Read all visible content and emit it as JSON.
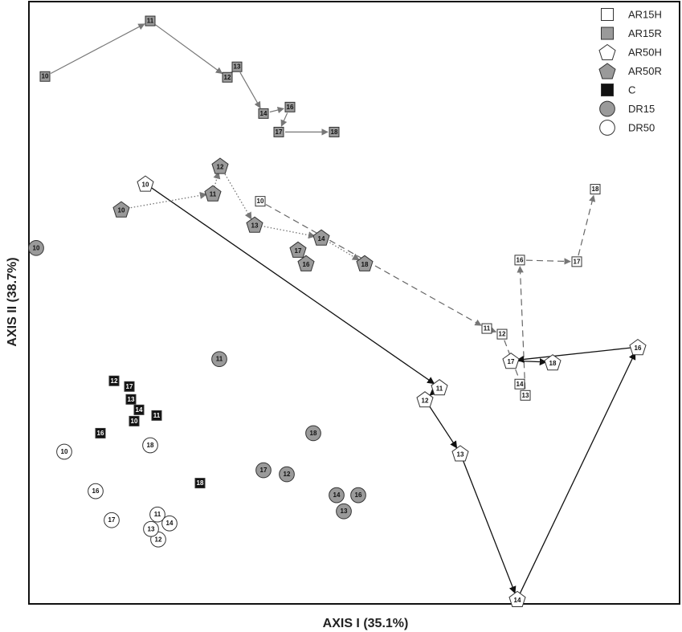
{
  "chart_data": {
    "type": "scatter",
    "xlabel": "AXIS I (35.1%)",
    "ylabel": "AXIS II (38.7%)",
    "xlim": [
      0,
      810
    ],
    "ylim": [
      -748,
      0
    ],
    "grid": false,
    "legend_position": "top-right",
    "colors": {
      "white": "#ffffff",
      "gray": "#9a9a9a",
      "black": "#111111",
      "stroke": "#333333"
    },
    "legend": [
      {
        "label": "AR15H",
        "marker": "square",
        "fill": "white",
        "sample_series": "AR15H"
      },
      {
        "label": "AR15R",
        "marker": "square",
        "fill": "gray",
        "sample_series": "AR15R"
      },
      {
        "label": "AR50H",
        "marker": "pentagon",
        "fill": "white",
        "sample_series": "AR50H"
      },
      {
        "label": "AR50R",
        "marker": "pentagon",
        "fill": "gray",
        "sample_series": "AR50R"
      },
      {
        "label": "C",
        "marker": "square",
        "fill": "black",
        "sample_series": "C"
      },
      {
        "label": "DR15",
        "marker": "circle",
        "fill": "gray",
        "sample_series": "DR15"
      },
      {
        "label": "DR50",
        "marker": "circle",
        "fill": "white",
        "sample_series": "DR50"
      }
    ],
    "series": [
      {
        "name": "AR15H",
        "marker": "square",
        "fill": "white",
        "path_style": "dashed",
        "points": [
          {
            "label": "10",
            "x": 288,
            "y": -248
          },
          {
            "label": "11",
            "x": 570,
            "y": -406
          },
          {
            "label": "12",
            "x": 589,
            "y": -413
          },
          {
            "label": "13",
            "x": 618,
            "y": -489
          },
          {
            "label": "14",
            "x": 611,
            "y": -475
          },
          {
            "label": "16",
            "x": 611,
            "y": -321
          },
          {
            "label": "17",
            "x": 682,
            "y": -323
          },
          {
            "label": "18",
            "x": 705,
            "y": -233
          }
        ],
        "path": [
          "10",
          "11",
          "12",
          "13",
          "16",
          "17",
          "18"
        ]
      },
      {
        "name": "AR15R",
        "marker": "square",
        "fill": "gray",
        "path_style": "solid-gray",
        "points": [
          {
            "label": "10",
            "x": 20,
            "y": -93
          },
          {
            "label": "11",
            "x": 151,
            "y": -24
          },
          {
            "label": "12",
            "x": 247,
            "y": -94
          },
          {
            "label": "13",
            "x": 259,
            "y": -81
          },
          {
            "label": "14",
            "x": 292,
            "y": -139
          },
          {
            "label": "16",
            "x": 325,
            "y": -131
          },
          {
            "label": "17",
            "x": 311,
            "y": -162
          },
          {
            "label": "18",
            "x": 380,
            "y": -162
          }
        ],
        "path": [
          "10",
          "11",
          "12",
          "13",
          "14",
          "16",
          "17",
          "18"
        ]
      },
      {
        "name": "AR50H",
        "marker": "pentagon",
        "fill": "white",
        "path_style": "solid-black",
        "points": [
          {
            "label": "10",
            "x": 145,
            "y": -226
          },
          {
            "label": "11",
            "x": 511,
            "y": -479
          },
          {
            "label": "12",
            "x": 493,
            "y": -494
          },
          {
            "label": "13",
            "x": 537,
            "y": -561
          },
          {
            "label": "14",
            "x": 608,
            "y": -742
          },
          {
            "label": "16",
            "x": 758,
            "y": -429
          },
          {
            "label": "17",
            "x": 600,
            "y": -446
          },
          {
            "label": "18",
            "x": 652,
            "y": -448
          }
        ],
        "path": [
          "10",
          "11",
          "12",
          "13",
          "14",
          "16",
          "17",
          "18"
        ]
      },
      {
        "name": "AR50R",
        "marker": "pentagon",
        "fill": "gray",
        "path_style": "dotted",
        "points": [
          {
            "label": "10",
            "x": 115,
            "y": -258
          },
          {
            "label": "11",
            "x": 229,
            "y": -238
          },
          {
            "label": "12",
            "x": 238,
            "y": -204
          },
          {
            "label": "13",
            "x": 281,
            "y": -277
          },
          {
            "label": "14",
            "x": 364,
            "y": -293
          },
          {
            "label": "16",
            "x": 345,
            "y": -325
          },
          {
            "label": "17",
            "x": 335,
            "y": -308
          },
          {
            "label": "18",
            "x": 418,
            "y": -325
          }
        ],
        "path": [
          "10",
          "11",
          "12",
          "13",
          "14",
          "18"
        ]
      },
      {
        "name": "C",
        "marker": "square",
        "fill": "black",
        "points": [
          {
            "label": "10",
            "x": 131,
            "y": -521
          },
          {
            "label": "11",
            "x": 159,
            "y": -514
          },
          {
            "label": "12",
            "x": 106,
            "y": -471
          },
          {
            "label": "13",
            "x": 127,
            "y": -494
          },
          {
            "label": "14",
            "x": 137,
            "y": -507
          },
          {
            "label": "16",
            "x": 89,
            "y": -536
          },
          {
            "label": "17",
            "x": 125,
            "y": -478
          },
          {
            "label": "18",
            "x": 213,
            "y": -598
          }
        ]
      },
      {
        "name": "DR15",
        "marker": "circle",
        "fill": "gray",
        "points": [
          {
            "label": "10",
            "x": 9,
            "y": -306
          },
          {
            "label": "11",
            "x": 237,
            "y": -444
          },
          {
            "label": "12",
            "x": 321,
            "y": -587
          },
          {
            "label": "13",
            "x": 392,
            "y": -633
          },
          {
            "label": "14",
            "x": 383,
            "y": -613
          },
          {
            "label": "16",
            "x": 410,
            "y": -613
          },
          {
            "label": "17",
            "x": 292,
            "y": -582
          },
          {
            "label": "18",
            "x": 354,
            "y": -536
          }
        ]
      },
      {
        "name": "DR50",
        "marker": "circle",
        "fill": "white",
        "points": [
          {
            "label": "10",
            "x": 44,
            "y": -559
          },
          {
            "label": "11",
            "x": 160,
            "y": -637
          },
          {
            "label": "12",
            "x": 161,
            "y": -668
          },
          {
            "label": "13",
            "x": 152,
            "y": -655
          },
          {
            "label": "14",
            "x": 175,
            "y": -648
          },
          {
            "label": "16",
            "x": 83,
            "y": -608
          },
          {
            "label": "17",
            "x": 103,
            "y": -644
          },
          {
            "label": "18",
            "x": 151,
            "y": -551
          }
        ]
      }
    ]
  }
}
